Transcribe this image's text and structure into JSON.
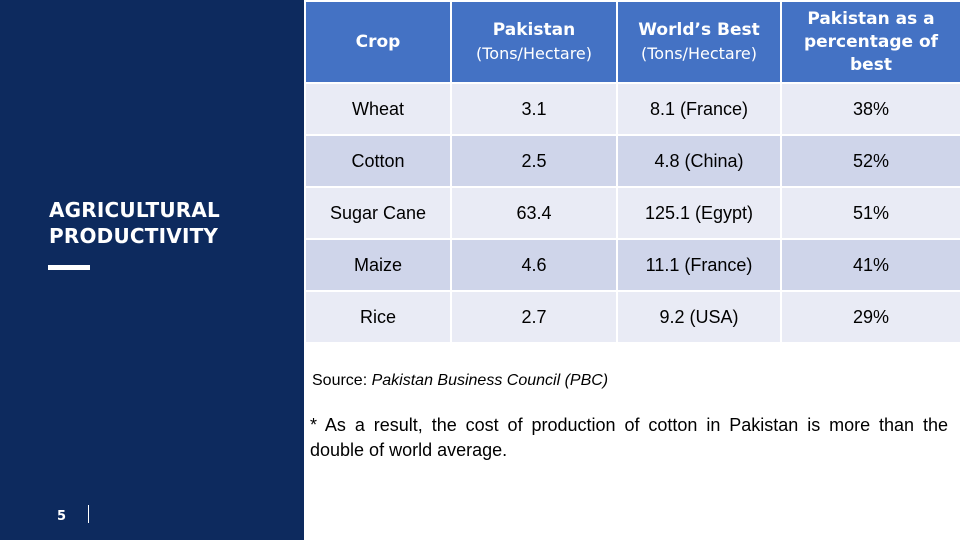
{
  "sidebar": {
    "title_line1": "AGRICULTURAL",
    "title_line2": "PRODUCTIVITY",
    "page_number": "5"
  },
  "table": {
    "headers": [
      {
        "line1": "Crop",
        "line2": ""
      },
      {
        "line1": "Pakistan",
        "line2": "(Tons/Hectare)"
      },
      {
        "line1": "World’s Best",
        "line2": "(Tons/Hectare)"
      },
      {
        "line1": "Pakistan as a percentage of best",
        "line2": ""
      }
    ],
    "rows": [
      [
        "Wheat",
        "3.1",
        "8.1 (France)",
        "38%"
      ],
      [
        "Cotton",
        "2.5",
        "4.8 (China)",
        "52%"
      ],
      [
        "Sugar Cane",
        "63.4",
        "125.1 (Egypt)",
        "51%"
      ],
      [
        "Maize",
        "4.6",
        "11.1 (France)",
        "41%"
      ],
      [
        "Rice",
        "2.7",
        "9.2 (USA)",
        "29%"
      ]
    ]
  },
  "source": {
    "label": "Source: ",
    "text": "Pakistan Business Council (PBC)"
  },
  "note": "* As a result, the cost of production of cotton in Pakistan is more than the double of world average.",
  "colors": {
    "sidebar_bg": "#0d2a5e",
    "header_bg": "#4472c4",
    "row_light": "#e9ebf5",
    "row_dark": "#cfd5ea"
  }
}
